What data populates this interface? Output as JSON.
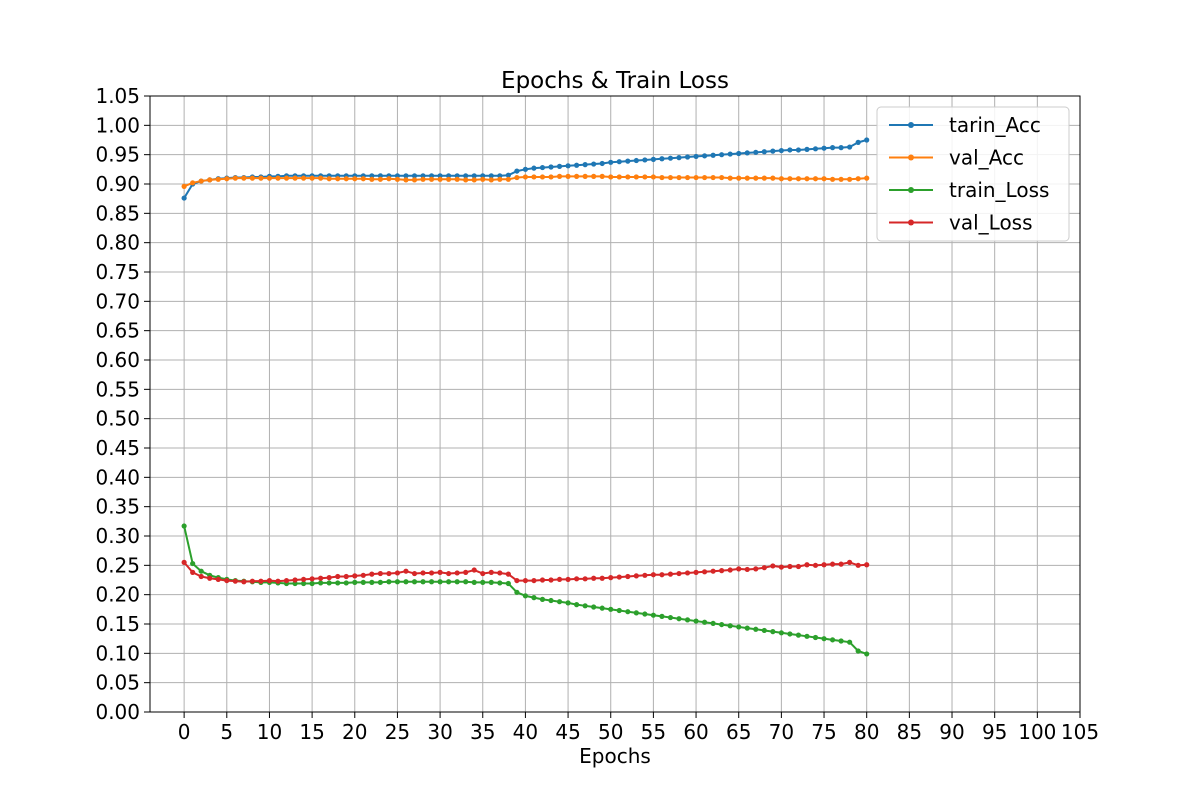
{
  "chart_data": {
    "type": "line",
    "title": "Epochs & Train Loss",
    "xlabel": "Epochs",
    "ylabel": "",
    "xlim": [
      -4,
      105
    ],
    "ylim": [
      0,
      1.05
    ],
    "x_ticks": [
      0,
      5,
      10,
      15,
      20,
      25,
      30,
      35,
      40,
      45,
      50,
      55,
      60,
      65,
      70,
      75,
      80,
      85,
      90,
      95,
      100,
      105
    ],
    "y_ticks": [
      "0.00",
      "0.05",
      "0.10",
      "0.15",
      "0.20",
      "0.25",
      "0.30",
      "0.35",
      "0.40",
      "0.45",
      "0.50",
      "0.55",
      "0.60",
      "0.65",
      "0.70",
      "0.75",
      "0.80",
      "0.85",
      "0.90",
      "0.95",
      "1.00",
      "1.05"
    ],
    "grid": true,
    "legend_position": "top-right",
    "x": [
      0,
      1,
      2,
      3,
      4,
      5,
      6,
      7,
      8,
      9,
      10,
      11,
      12,
      13,
      14,
      15,
      16,
      17,
      18,
      19,
      20,
      21,
      22,
      23,
      24,
      25,
      26,
      27,
      28,
      29,
      30,
      31,
      32,
      33,
      34,
      35,
      36,
      37,
      38,
      39,
      40,
      41,
      42,
      43,
      44,
      45,
      46,
      47,
      48,
      49,
      50,
      51,
      52,
      53,
      54,
      55,
      56,
      57,
      58,
      59,
      60,
      61,
      62,
      63,
      64,
      65,
      66,
      67,
      68,
      69,
      70,
      71,
      72,
      73,
      74,
      75,
      76,
      77,
      78,
      79,
      80
    ],
    "series": [
      {
        "name": "tarin_Acc",
        "color": "#1f77b4",
        "values": [
          0.876,
          0.9,
          0.905,
          0.907,
          0.909,
          0.91,
          0.911,
          0.911,
          0.912,
          0.912,
          0.913,
          0.913,
          0.914,
          0.914,
          0.914,
          0.914,
          0.914,
          0.914,
          0.914,
          0.914,
          0.914,
          0.914,
          0.914,
          0.914,
          0.914,
          0.914,
          0.914,
          0.914,
          0.914,
          0.914,
          0.914,
          0.914,
          0.914,
          0.914,
          0.914,
          0.914,
          0.914,
          0.914,
          0.915,
          0.922,
          0.925,
          0.927,
          0.928,
          0.929,
          0.93,
          0.931,
          0.932,
          0.933,
          0.934,
          0.935,
          0.937,
          0.938,
          0.939,
          0.94,
          0.941,
          0.942,
          0.943,
          0.944,
          0.945,
          0.946,
          0.947,
          0.948,
          0.949,
          0.95,
          0.951,
          0.952,
          0.953,
          0.954,
          0.955,
          0.956,
          0.957,
          0.958,
          0.958,
          0.959,
          0.96,
          0.961,
          0.962,
          0.962,
          0.963,
          0.971,
          0.975
        ]
      },
      {
        "name": "val_Acc",
        "color": "#ff7f0e",
        "values": [
          0.896,
          0.902,
          0.905,
          0.907,
          0.908,
          0.909,
          0.91,
          0.91,
          0.91,
          0.91,
          0.91,
          0.91,
          0.91,
          0.91,
          0.91,
          0.91,
          0.91,
          0.909,
          0.909,
          0.909,
          0.909,
          0.909,
          0.908,
          0.908,
          0.909,
          0.908,
          0.907,
          0.907,
          0.908,
          0.908,
          0.908,
          0.908,
          0.908,
          0.907,
          0.907,
          0.908,
          0.907,
          0.908,
          0.908,
          0.911,
          0.912,
          0.912,
          0.912,
          0.912,
          0.913,
          0.913,
          0.913,
          0.913,
          0.913,
          0.913,
          0.912,
          0.912,
          0.912,
          0.912,
          0.912,
          0.912,
          0.911,
          0.911,
          0.911,
          0.911,
          0.911,
          0.911,
          0.911,
          0.911,
          0.91,
          0.91,
          0.91,
          0.91,
          0.91,
          0.91,
          0.909,
          0.909,
          0.909,
          0.909,
          0.909,
          0.909,
          0.908,
          0.908,
          0.908,
          0.909,
          0.91
        ]
      },
      {
        "name": "train_Loss",
        "color": "#2ca02c",
        "values": [
          0.317,
          0.253,
          0.24,
          0.233,
          0.229,
          0.226,
          0.224,
          0.223,
          0.222,
          0.221,
          0.221,
          0.22,
          0.219,
          0.219,
          0.219,
          0.219,
          0.22,
          0.22,
          0.22,
          0.22,
          0.221,
          0.221,
          0.221,
          0.221,
          0.222,
          0.222,
          0.222,
          0.222,
          0.222,
          0.222,
          0.222,
          0.222,
          0.222,
          0.222,
          0.221,
          0.221,
          0.221,
          0.22,
          0.219,
          0.204,
          0.198,
          0.195,
          0.192,
          0.19,
          0.188,
          0.186,
          0.183,
          0.181,
          0.179,
          0.177,
          0.175,
          0.173,
          0.171,
          0.169,
          0.167,
          0.165,
          0.163,
          0.161,
          0.159,
          0.157,
          0.155,
          0.153,
          0.151,
          0.149,
          0.147,
          0.145,
          0.143,
          0.141,
          0.139,
          0.137,
          0.135,
          0.133,
          0.131,
          0.129,
          0.127,
          0.125,
          0.123,
          0.121,
          0.119,
          0.104,
          0.099
        ]
      },
      {
        "name": "val_Loss",
        "color": "#d62728",
        "values": [
          0.255,
          0.238,
          0.231,
          0.228,
          0.226,
          0.224,
          0.223,
          0.222,
          0.223,
          0.223,
          0.224,
          0.223,
          0.224,
          0.225,
          0.226,
          0.227,
          0.228,
          0.229,
          0.231,
          0.231,
          0.232,
          0.233,
          0.235,
          0.236,
          0.236,
          0.237,
          0.24,
          0.236,
          0.237,
          0.237,
          0.238,
          0.236,
          0.237,
          0.238,
          0.242,
          0.236,
          0.238,
          0.237,
          0.235,
          0.224,
          0.224,
          0.224,
          0.225,
          0.225,
          0.226,
          0.226,
          0.227,
          0.227,
          0.228,
          0.228,
          0.229,
          0.23,
          0.231,
          0.232,
          0.233,
          0.234,
          0.234,
          0.235,
          0.236,
          0.237,
          0.238,
          0.239,
          0.24,
          0.241,
          0.242,
          0.244,
          0.243,
          0.244,
          0.246,
          0.249,
          0.247,
          0.248,
          0.248,
          0.251,
          0.25,
          0.251,
          0.252,
          0.252,
          0.255,
          0.25,
          0.251
        ]
      }
    ]
  }
}
